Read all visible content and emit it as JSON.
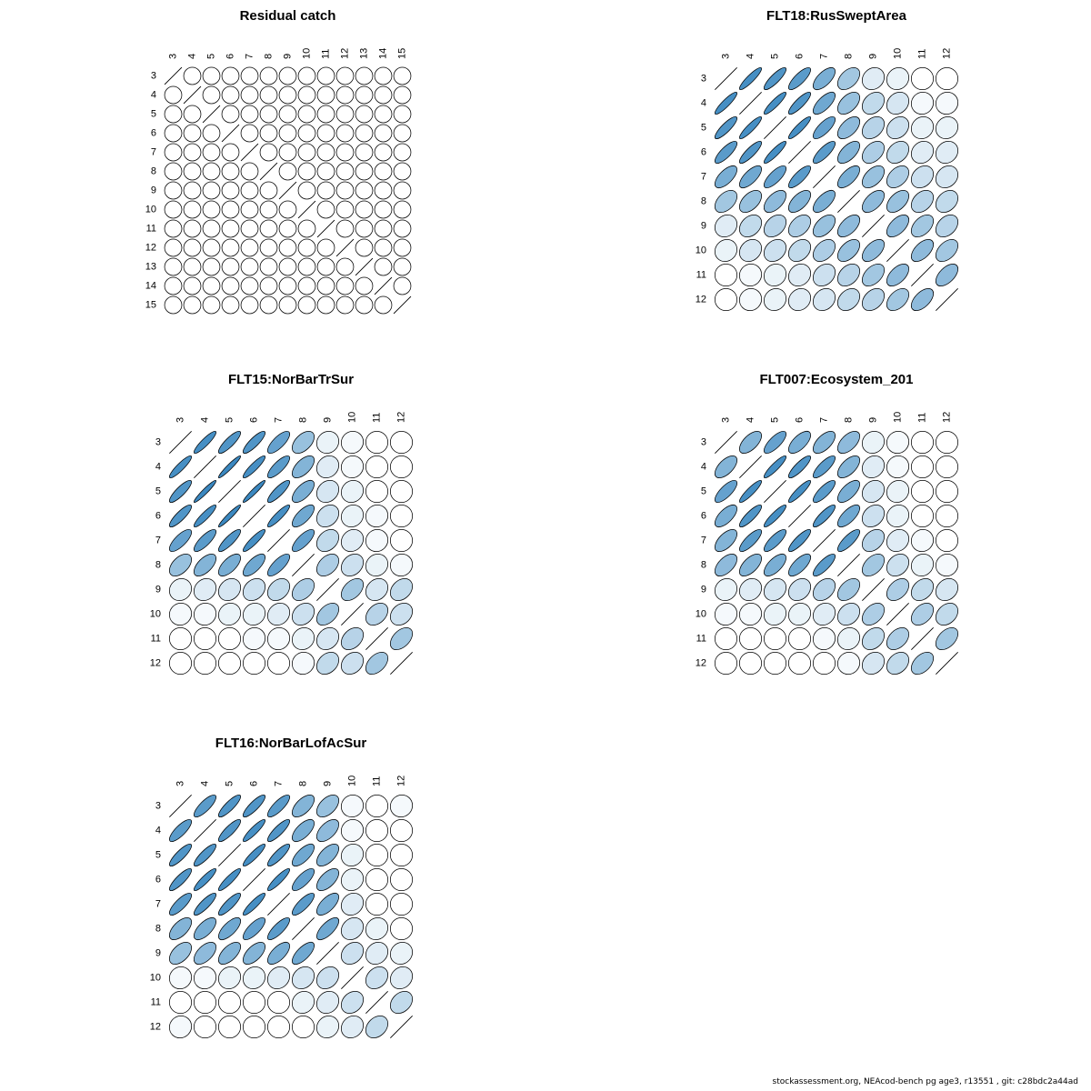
{
  "page": {
    "background": "#ffffff"
  },
  "footer": {
    "text": "stockassessment.org, NEAcod-bench  pg  age3, r13551 , git: c28bdc2a44ad"
  },
  "colors": {
    "positive_max": "#3182bd",
    "zero": "#ffffff",
    "outline": "#000000"
  },
  "chart_data": [
    {
      "type": "heatmap",
      "style": "correlation-ellipse-matrix",
      "title": "Residual catch",
      "axis_label": "age",
      "ages": [
        3,
        4,
        5,
        6,
        7,
        8,
        9,
        10,
        11,
        12,
        13,
        14,
        15
      ],
      "diagonal": 1,
      "legend": "none",
      "upper_triangle": [
        [
          0,
          0,
          0,
          0,
          0,
          0,
          0,
          0,
          0,
          0,
          0,
          0
        ],
        [
          0,
          0,
          0,
          0,
          0,
          0,
          0,
          0,
          0,
          0,
          0
        ],
        [
          0,
          0,
          0,
          0,
          0,
          0,
          0,
          0,
          0,
          0
        ],
        [
          0,
          0,
          0,
          0,
          0,
          0,
          0,
          0,
          0
        ],
        [
          0,
          0,
          0,
          0,
          0,
          0,
          0,
          0
        ],
        [
          0,
          0,
          0,
          0,
          0,
          0,
          0
        ],
        [
          0,
          0,
          0,
          0,
          0,
          0
        ],
        [
          0,
          0,
          0,
          0,
          0
        ],
        [
          0,
          0,
          0,
          0
        ],
        [
          0,
          0,
          0
        ],
        [
          0,
          0
        ],
        [
          0
        ]
      ]
    },
    {
      "type": "heatmap",
      "style": "correlation-ellipse-matrix",
      "title": "FLT18:RusSweptArea",
      "axis_label": "age",
      "ages": [
        3,
        4,
        5,
        6,
        7,
        8,
        9,
        10,
        11,
        12
      ],
      "diagonal": 1,
      "legend": "none",
      "upper_triangle": [
        [
          0.9,
          0.85,
          0.8,
          0.65,
          0.45,
          0.15,
          0.1,
          0.0,
          0.0
        ],
        [
          0.9,
          0.85,
          0.7,
          0.5,
          0.3,
          0.2,
          0.05,
          0.05
        ],
        [
          0.9,
          0.75,
          0.55,
          0.35,
          0.25,
          0.1,
          0.1
        ],
        [
          0.8,
          0.6,
          0.4,
          0.3,
          0.15,
          0.15
        ],
        [
          0.65,
          0.5,
          0.4,
          0.25,
          0.2
        ],
        [
          0.55,
          0.5,
          0.35,
          0.3
        ],
        [
          0.55,
          0.45,
          0.35
        ],
        [
          0.55,
          0.45
        ],
        [
          0.55
        ]
      ]
    },
    {
      "type": "heatmap",
      "style": "correlation-ellipse-matrix",
      "title": "FLT15:NorBarTrSur",
      "axis_label": "age",
      "ages": [
        3,
        4,
        5,
        6,
        7,
        8,
        9,
        10,
        11,
        12
      ],
      "diagonal": 1,
      "legend": "none",
      "upper_triangle": [
        [
          0.9,
          0.85,
          0.85,
          0.75,
          0.5,
          0.1,
          0.05,
          0,
          0
        ],
        [
          0.95,
          0.9,
          0.8,
          0.6,
          0.15,
          0.05,
          0,
          0
        ],
        [
          0.95,
          0.85,
          0.65,
          0.2,
          0.1,
          0,
          0
        ],
        [
          0.9,
          0.7,
          0.25,
          0.1,
          0.05,
          0
        ],
        [
          0.75,
          0.3,
          0.15,
          0.05,
          0
        ],
        [
          0.4,
          0.25,
          0.1,
          0.05
        ],
        [
          0.45,
          0.2,
          0.3
        ],
        [
          0.35,
          0.25
        ],
        [
          0.45
        ]
      ]
    },
    {
      "type": "heatmap",
      "style": "correlation-ellipse-matrix",
      "title": "FLT007:Ecosystem_201",
      "axis_label": "age",
      "ages": [
        3,
        4,
        5,
        6,
        7,
        8,
        9,
        10,
        11,
        12
      ],
      "diagonal": 1,
      "legend": "none",
      "upper_triangle": [
        [
          0.6,
          0.75,
          0.65,
          0.6,
          0.55,
          0.1,
          0.05,
          0,
          0
        ],
        [
          0.9,
          0.85,
          0.8,
          0.6,
          0.15,
          0.05,
          0,
          0
        ],
        [
          0.9,
          0.8,
          0.65,
          0.2,
          0.1,
          0,
          0
        ],
        [
          0.85,
          0.7,
          0.25,
          0.1,
          0,
          0
        ],
        [
          0.8,
          0.35,
          0.15,
          0.05,
          0
        ],
        [
          0.45,
          0.25,
          0.1,
          0.05
        ],
        [
          0.4,
          0.3,
          0.2
        ],
        [
          0.4,
          0.3
        ],
        [
          0.45
        ]
      ]
    },
    {
      "type": "heatmap",
      "style": "correlation-ellipse-matrix",
      "title": "FLT16:NorBarLofAcSur",
      "axis_label": "age",
      "ages": [
        3,
        4,
        5,
        6,
        7,
        8,
        9,
        10,
        11,
        12
      ],
      "diagonal": 1,
      "legend": "none",
      "upper_triangle": [
        [
          0.8,
          0.85,
          0.85,
          0.8,
          0.6,
          0.5,
          0.05,
          0,
          0.05
        ],
        [
          0.85,
          0.9,
          0.85,
          0.65,
          0.55,
          0.05,
          0,
          0
        ],
        [
          0.9,
          0.85,
          0.7,
          0.6,
          0.1,
          0,
          0
        ],
        [
          0.9,
          0.75,
          0.6,
          0.1,
          0,
          0
        ],
        [
          0.8,
          0.65,
          0.15,
          0,
          0
        ],
        [
          0.7,
          0.2,
          0.1,
          0
        ],
        [
          0.25,
          0.15,
          0.1
        ],
        [
          0.25,
          0.15
        ],
        [
          0.3
        ]
      ]
    }
  ]
}
